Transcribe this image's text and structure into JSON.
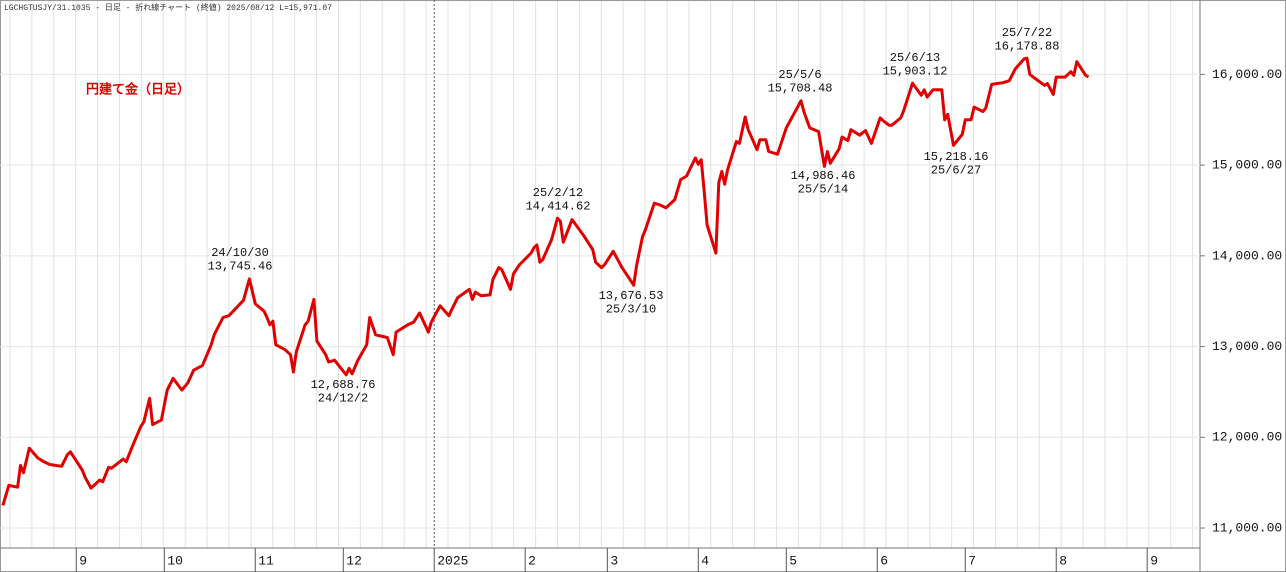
{
  "chart_data": {
    "type": "line",
    "header": "LGCHGTUSJY/31.1035 - 日足 - 折れ線チャート (終値)  2025/08/12 L=15,971.07",
    "title": "円建て金（日足）",
    "color": "#e00000",
    "grid": true,
    "xlim": [
      "2024-08-06",
      "2025-09-19"
    ],
    "xticks": [
      {
        "value": "2024-09-01",
        "label": "9"
      },
      {
        "value": "2024-10-01",
        "label": "10"
      },
      {
        "value": "2024-11-01",
        "label": "11"
      },
      {
        "value": "2024-12-01",
        "label": "12"
      },
      {
        "value": "2025-01-01",
        "label": "2025"
      },
      {
        "value": "2025-02-01",
        "label": "2"
      },
      {
        "value": "2025-03-01",
        "label": "3"
      },
      {
        "value": "2025-04-01",
        "label": "4"
      },
      {
        "value": "2025-05-01",
        "label": "5"
      },
      {
        "value": "2025-06-01",
        "label": "6"
      },
      {
        "value": "2025-07-01",
        "label": "7"
      },
      {
        "value": "2025-08-01",
        "label": "8"
      },
      {
        "value": "2025-09-01",
        "label": "9"
      }
    ],
    "ylim": [
      10780,
      16820
    ],
    "yticks": [
      {
        "value": 11000,
        "label": "11,000.00"
      },
      {
        "value": 12000,
        "label": "12,000.00"
      },
      {
        "value": 13000,
        "label": "13,000.00"
      },
      {
        "value": 14000,
        "label": "14,000.00"
      },
      {
        "value": 15000,
        "label": "15,000.00"
      },
      {
        "value": 16000,
        "label": "16,000.00"
      }
    ],
    "annotations": [
      {
        "lines": [
          "24/10/30",
          "13,745.46"
        ]
      },
      {
        "lines": [
          "12,688.76",
          "24/12/2"
        ]
      },
      {
        "lines": [
          "25/2/12",
          "14,414.62"
        ]
      },
      {
        "lines": [
          "13,676.53",
          "25/3/10"
        ]
      },
      {
        "lines": [
          "25/5/6",
          "15,708.48"
        ]
      },
      {
        "lines": [
          "14,986.46",
          "25/5/14"
        ]
      },
      {
        "lines": [
          "25/6/13",
          "15,903.12"
        ]
      },
      {
        "lines": [
          "15,218.16",
          "25/6/27"
        ]
      },
      {
        "lines": [
          "25/7/22",
          "16,178.88"
        ]
      }
    ],
    "x": [
      "2024-08-07",
      "2024-08-09",
      "2024-08-12",
      "2024-08-13",
      "2024-08-14",
      "2024-08-16",
      "2024-08-19",
      "2024-08-21",
      "2024-08-23",
      "2024-08-27",
      "2024-08-29",
      "2024-08-30",
      "2024-09-03",
      "2024-09-04",
      "2024-09-06",
      "2024-09-09",
      "2024-09-10",
      "2024-09-12",
      "2024-09-13",
      "2024-09-17",
      "2024-09-18",
      "2024-09-20",
      "2024-09-23",
      "2024-09-24",
      "2024-09-26",
      "2024-09-27",
      "2024-09-30",
      "2024-10-02",
      "2024-10-04",
      "2024-10-07",
      "2024-10-09",
      "2024-10-11",
      "2024-10-14",
      "2024-10-17",
      "2024-10-18",
      "2024-10-21",
      "2024-10-23",
      "2024-10-28",
      "2024-10-30",
      "2024-11-01",
      "2024-11-04",
      "2024-11-05",
      "2024-11-06",
      "2024-11-07",
      "2024-11-08",
      "2024-11-11",
      "2024-11-13",
      "2024-11-14",
      "2024-11-15",
      "2024-11-18",
      "2024-11-19",
      "2024-11-21",
      "2024-11-22",
      "2024-11-25",
      "2024-11-26",
      "2024-11-28",
      "2024-12-02",
      "2024-12-03",
      "2024-12-04",
      "2024-12-06",
      "2024-12-09",
      "2024-12-10",
      "2024-12-12",
      "2024-12-16",
      "2024-12-18",
      "2024-12-19",
      "2024-12-23",
      "2024-12-25",
      "2024-12-27",
      "2024-12-30",
      "2024-12-31",
      "2025-01-03",
      "2025-01-06",
      "2025-01-07",
      "2025-01-09",
      "2025-01-13",
      "2025-01-14",
      "2025-01-15",
      "2025-01-17",
      "2025-01-20",
      "2025-01-21",
      "2025-01-23",
      "2025-01-24",
      "2025-01-27",
      "2025-01-28",
      "2025-01-30",
      "2025-02-03",
      "2025-02-04",
      "2025-02-05",
      "2025-02-06",
      "2025-02-07",
      "2025-02-10",
      "2025-02-12",
      "2025-02-13",
      "2025-02-14",
      "2025-02-17",
      "2025-02-19",
      "2025-02-21",
      "2025-02-24",
      "2025-02-25",
      "2025-02-27",
      "2025-02-28",
      "2025-03-03",
      "2025-03-05",
      "2025-03-06",
      "2025-03-10",
      "2025-03-11",
      "2025-03-13",
      "2025-03-14",
      "2025-03-17",
      "2025-03-19",
      "2025-03-21",
      "2025-03-24",
      "2025-03-26",
      "2025-03-28",
      "2025-03-31",
      "2025-04-01",
      "2025-04-02",
      "2025-04-03",
      "2025-04-04",
      "2025-04-07",
      "2025-04-08",
      "2025-04-09",
      "2025-04-10",
      "2025-04-11",
      "2025-04-14",
      "2025-04-15",
      "2025-04-17",
      "2025-04-18",
      "2025-04-21",
      "2025-04-22",
      "2025-04-24",
      "2025-04-25",
      "2025-04-28",
      "2025-05-01",
      "2025-05-06",
      "2025-05-07",
      "2025-05-08",
      "2025-05-09",
      "2025-05-12",
      "2025-05-14",
      "2025-05-15",
      "2025-05-16",
      "2025-05-19",
      "2025-05-20",
      "2025-05-22",
      "2025-05-23",
      "2025-05-26",
      "2025-05-28",
      "2025-05-30",
      "2025-06-02",
      "2025-06-03",
      "2025-06-05",
      "2025-06-06",
      "2025-06-09",
      "2025-06-10",
      "2025-06-13",
      "2025-06-16",
      "2025-06-17",
      "2025-06-18",
      "2025-06-20",
      "2025-06-23",
      "2025-06-24",
      "2025-06-25",
      "2025-06-27",
      "2025-06-30",
      "2025-07-01",
      "2025-07-03",
      "2025-07-04",
      "2025-07-07",
      "2025-07-08",
      "2025-07-10",
      "2025-07-14",
      "2025-07-16",
      "2025-07-18",
      "2025-07-21",
      "2025-07-22",
      "2025-07-23",
      "2025-07-25",
      "2025-07-28",
      "2025-07-29",
      "2025-07-31",
      "2025-08-01",
      "2025-08-04",
      "2025-08-06",
      "2025-08-07",
      "2025-08-08",
      "2025-08-11",
      "2025-08-12"
    ],
    "values": [
      11250,
      11470,
      11450,
      11690,
      11610,
      11880,
      11770,
      11730,
      11700,
      11680,
      11810,
      11840,
      11640,
      11560,
      11440,
      11530,
      11510,
      11670,
      11660,
      11760,
      11730,
      11890,
      12120,
      12170,
      12430,
      12140,
      12190,
      12520,
      12650,
      12520,
      12600,
      12740,
      12790,
      13020,
      13130,
      13320,
      13340,
      13510,
      13745.46,
      13470,
      13390,
      13320,
      13240,
      13280,
      13020,
      12970,
      12910,
      12720,
      12940,
      13240,
      13280,
      13520,
      13060,
      12910,
      12830,
      12850,
      12688.76,
      12760,
      12700,
      12850,
      13020,
      13320,
      13130,
      13100,
      12910,
      13160,
      13240,
      13270,
      13370,
      13160,
      13270,
      13450,
      13340,
      13410,
      13540,
      13630,
      13520,
      13600,
      13560,
      13570,
      13740,
      13870,
      13850,
      13630,
      13800,
      13900,
      14030,
      14090,
      14120,
      13930,
      13960,
      14180,
      14414.62,
      14380,
      14150,
      14400,
      14310,
      14220,
      14070,
      13930,
      13870,
      13900,
      14050,
      13930,
      13870,
      13676.53,
      13900,
      14210,
      14290,
      14580,
      14560,
      14530,
      14620,
      14840,
      14880,
      15080,
      15010,
      15060,
      14710,
      14340,
      14030,
      14810,
      14930,
      14790,
      14950,
      15260,
      15240,
      15530,
      15390,
      15170,
      15280,
      15280,
      15150,
      15120,
      15410,
      15708.48,
      15590,
      15500,
      15410,
      15370,
      14986.46,
      15150,
      15020,
      15180,
      15310,
      15270,
      15390,
      15330,
      15380,
      15240,
      15520,
      15490,
      15440,
      15440,
      15520,
      15600,
      15903.12,
      15770,
      15830,
      15750,
      15830,
      15830,
      15500,
      15560,
      15218.16,
      15340,
      15500,
      15500,
      15640,
      15590,
      15630,
      15890,
      15910,
      15930,
      16060,
      16170,
      16178.88,
      16000,
      15950,
      15880,
      15900,
      15780,
      15970,
      15970,
      16030,
      15990,
      16140,
      15990,
      15971.07
    ]
  }
}
